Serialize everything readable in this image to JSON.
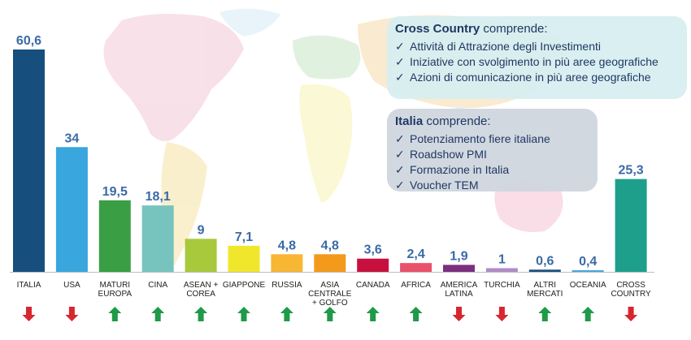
{
  "chart_data": {
    "type": "bar",
    "categories": [
      [
        "ITALIA"
      ],
      [
        "USA"
      ],
      [
        "MATURI",
        "EUROPA"
      ],
      [
        "CINA"
      ],
      [
        "ASEAN +",
        "COREA"
      ],
      [
        "GIAPPONE"
      ],
      [
        "RUSSIA"
      ],
      [
        "ASIA",
        "CENTRALE",
        "+ GOLFO"
      ],
      [
        "CANADA"
      ],
      [
        "AFRICA"
      ],
      [
        "AMERICA",
        "LATINA"
      ],
      [
        "TURCHIA"
      ],
      [
        "ALTRI",
        "MERCATI"
      ],
      [
        "OCEANIA"
      ],
      [
        "CROSS",
        "COUNTRY"
      ]
    ],
    "values": [
      60.6,
      34,
      19.5,
      18.1,
      9,
      7.1,
      4.8,
      4.8,
      3.6,
      2.4,
      1.9,
      1,
      0.6,
      0.4,
      25.3
    ],
    "value_labels": [
      "60,6",
      "34",
      "19,5",
      "18,1",
      "9",
      "7,1",
      "4,8",
      "4,8",
      "3,6",
      "2,4",
      "1,9",
      "1",
      "0,6",
      "0,4",
      "25,3"
    ],
    "bar_colors": [
      "#164f7e",
      "#39a6dd",
      "#3a9e45",
      "#76c4bd",
      "#a8c93c",
      "#f0e72c",
      "#f7b733",
      "#f39a1b",
      "#c8103e",
      "#e8526a",
      "#7b2f7e",
      "#b08bc6",
      "#1d4f7a",
      "#4aa7dc",
      "#1d9f8b"
    ],
    "trend": [
      "down",
      "down",
      "up",
      "up",
      "up",
      "up",
      "up",
      "up",
      "up",
      "up",
      "down",
      "down",
      "up",
      "up",
      "down"
    ],
    "trend_colors": {
      "up": "#1f9a48",
      "down": "#d7262e"
    },
    "value_label_color": "#3a6aa5",
    "ylim": [
      0,
      60.6
    ],
    "title": "",
    "xlabel": "",
    "ylabel": ""
  },
  "cross_box": {
    "title_bold": "Cross Country",
    "title_rest": " comprende:",
    "items": [
      "Attività di Attrazione degli Investimenti",
      "Iniziative con svolgimento in più aree geografiche",
      "Azioni di comunicazione in più aree geografiche"
    ]
  },
  "italia_box": {
    "title_bold": "Italia",
    "title_rest": " comprende:",
    "items": [
      "Potenziamento fiere italiane",
      "Roadshow PMI",
      "Formazione in Italia",
      "Voucher TEM"
    ]
  },
  "check_glyph": "✓"
}
